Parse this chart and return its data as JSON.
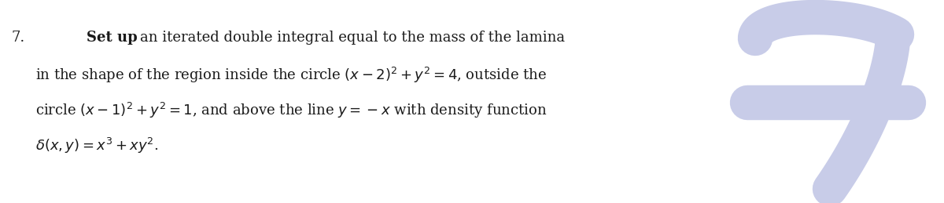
{
  "number": "7.",
  "line1_bold": "Set up",
  "line1_rest": " an iterated double integral equal to the mass of the lamina",
  "line2": "in the shape of the region inside the circle $(x - 2)^2 + y^2 = 4$, outside the",
  "line3": "circle $(x - 1)^2 + y^2 = 1$, and above the line $y = -x$ with density function",
  "line4": "$\\delta(x, y) = x^3 + xy^2$.",
  "bg_color": "#ffffff",
  "text_color": "#1a1a1a",
  "watermark_color": "#c8cce8",
  "font_size_main": 13.0,
  "figure_width": 12.0,
  "figure_height": 2.59,
  "dpi": 100
}
